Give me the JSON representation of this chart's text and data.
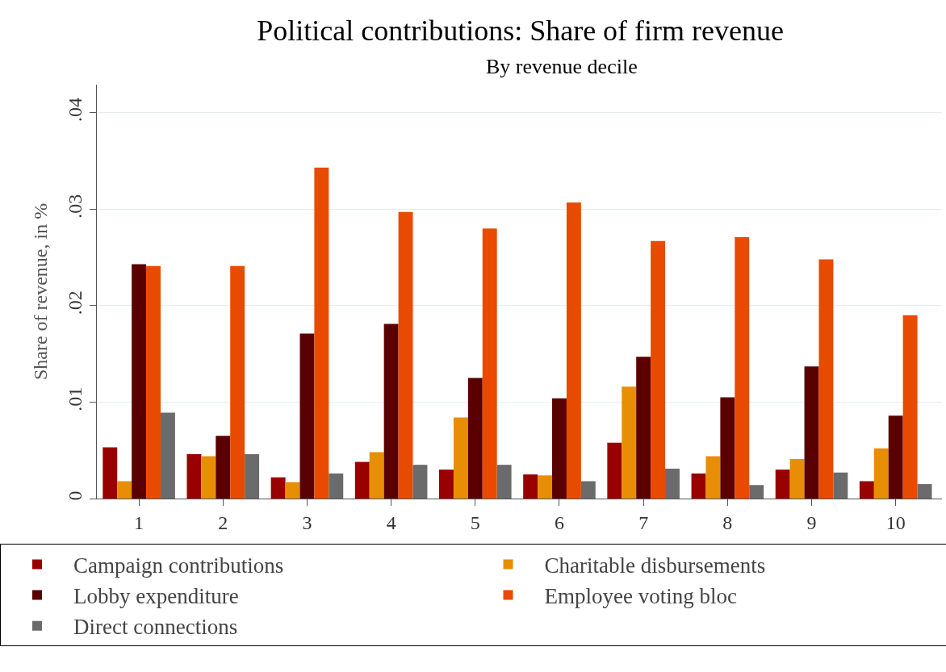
{
  "chart_data": {
    "type": "bar",
    "title": "Political contributions: Share of firm revenue",
    "subtitle": "By revenue decile",
    "ylabel": "Share of revenue, in %",
    "categories": [
      "1",
      "2",
      "3",
      "4",
      "5",
      "6",
      "7",
      "8",
      "9",
      "10"
    ],
    "series": [
      {
        "name": "Campaign contributions",
        "color": "#990000",
        "values": [
          0.0053,
          0.0046,
          0.0022,
          0.0038,
          0.003,
          0.0025,
          0.0058,
          0.0026,
          0.003,
          0.0018
        ]
      },
      {
        "name": "Charitable disbursements",
        "color": "#e88e05",
        "values": [
          0.0018,
          0.0044,
          0.0017,
          0.0048,
          0.0084,
          0.0024,
          0.0116,
          0.0044,
          0.0041,
          0.0052
        ]
      },
      {
        "name": "Lobby expenditure",
        "color": "#5a0000",
        "values": [
          0.0243,
          0.0065,
          0.0171,
          0.0181,
          0.0125,
          0.0104,
          0.0147,
          0.0105,
          0.0137,
          0.0086
        ]
      },
      {
        "name": "Employee voting bloc",
        "color": "#e84a00",
        "values": [
          0.0241,
          0.0241,
          0.0343,
          0.0297,
          0.028,
          0.0307,
          0.0267,
          0.0271,
          0.0248,
          0.019
        ]
      },
      {
        "name": "Direct connections",
        "color": "#6b6b6b",
        "values": [
          0.0089,
          0.0046,
          0.0026,
          0.0035,
          0.0035,
          0.0018,
          0.0031,
          0.0014,
          0.0027,
          0.0015
        ]
      }
    ],
    "ylim": [
      0,
      0.0429
    ],
    "yticks": [
      0,
      {
        "value": 0.01,
        "label": ".01"
      },
      {
        "value": 0.02,
        "label": ".02"
      },
      {
        "value": 0.03,
        "label": ".03"
      },
      {
        "value": 0.04,
        "label": ".04"
      }
    ],
    "grid": "y",
    "legend": "bottom"
  }
}
